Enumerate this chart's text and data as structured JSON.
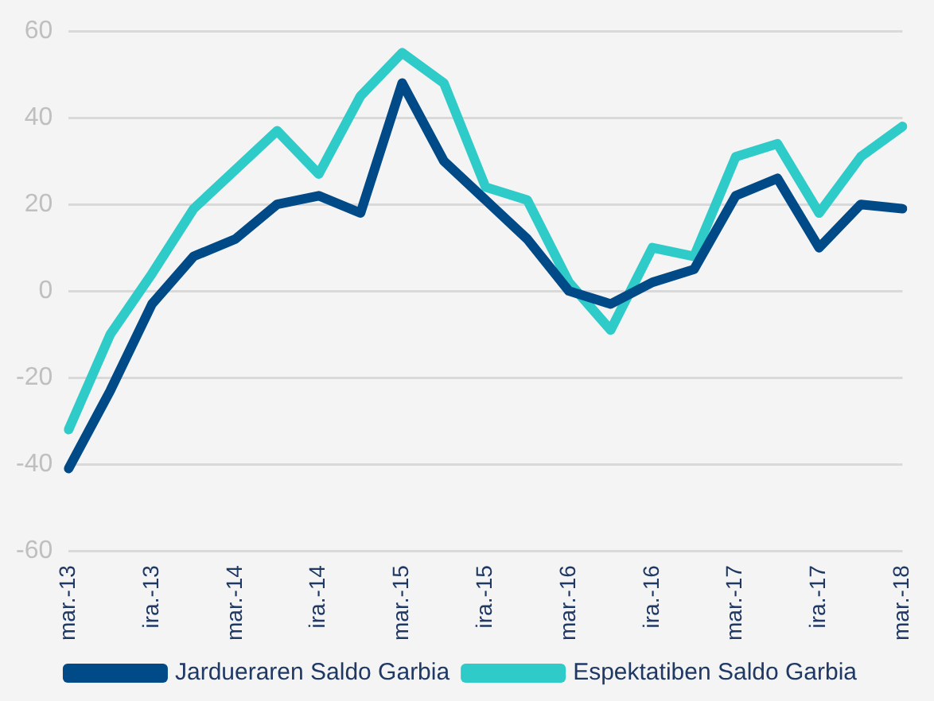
{
  "chart_data": {
    "type": "line",
    "categories": [
      "mar.-13",
      null,
      "ira.-13",
      null,
      "mar.-14",
      null,
      "ira.-14",
      null,
      "mar.-15",
      null,
      "ira.-15",
      null,
      "mar.-16",
      null,
      "ira.-16",
      null,
      "mar.-17",
      null,
      "ira.-17",
      null,
      "mar.-18"
    ],
    "series": [
      {
        "name": "Jardueraren Saldo Garbia",
        "color": "#004a87",
        "values": [
          -41,
          -23,
          -3,
          8,
          12,
          20,
          22,
          18,
          48,
          30,
          21,
          12,
          0,
          -3,
          2,
          5,
          22,
          26,
          10,
          20,
          19
        ]
      },
      {
        "name": "Espektatiben Saldo Garbia",
        "color": "#2ecbc8",
        "values": [
          -32,
          -10,
          4,
          19,
          28,
          37,
          27,
          45,
          55,
          48,
          24,
          21,
          2,
          -9,
          10,
          8,
          31,
          34,
          18,
          31,
          38
        ]
      }
    ],
    "ylim": [
      -60,
      60
    ],
    "yticks": [
      -60,
      -40,
      -20,
      0,
      20,
      40,
      60
    ],
    "grid": "y",
    "legend": "bottom",
    "marker": "none",
    "line_style": "solid"
  }
}
